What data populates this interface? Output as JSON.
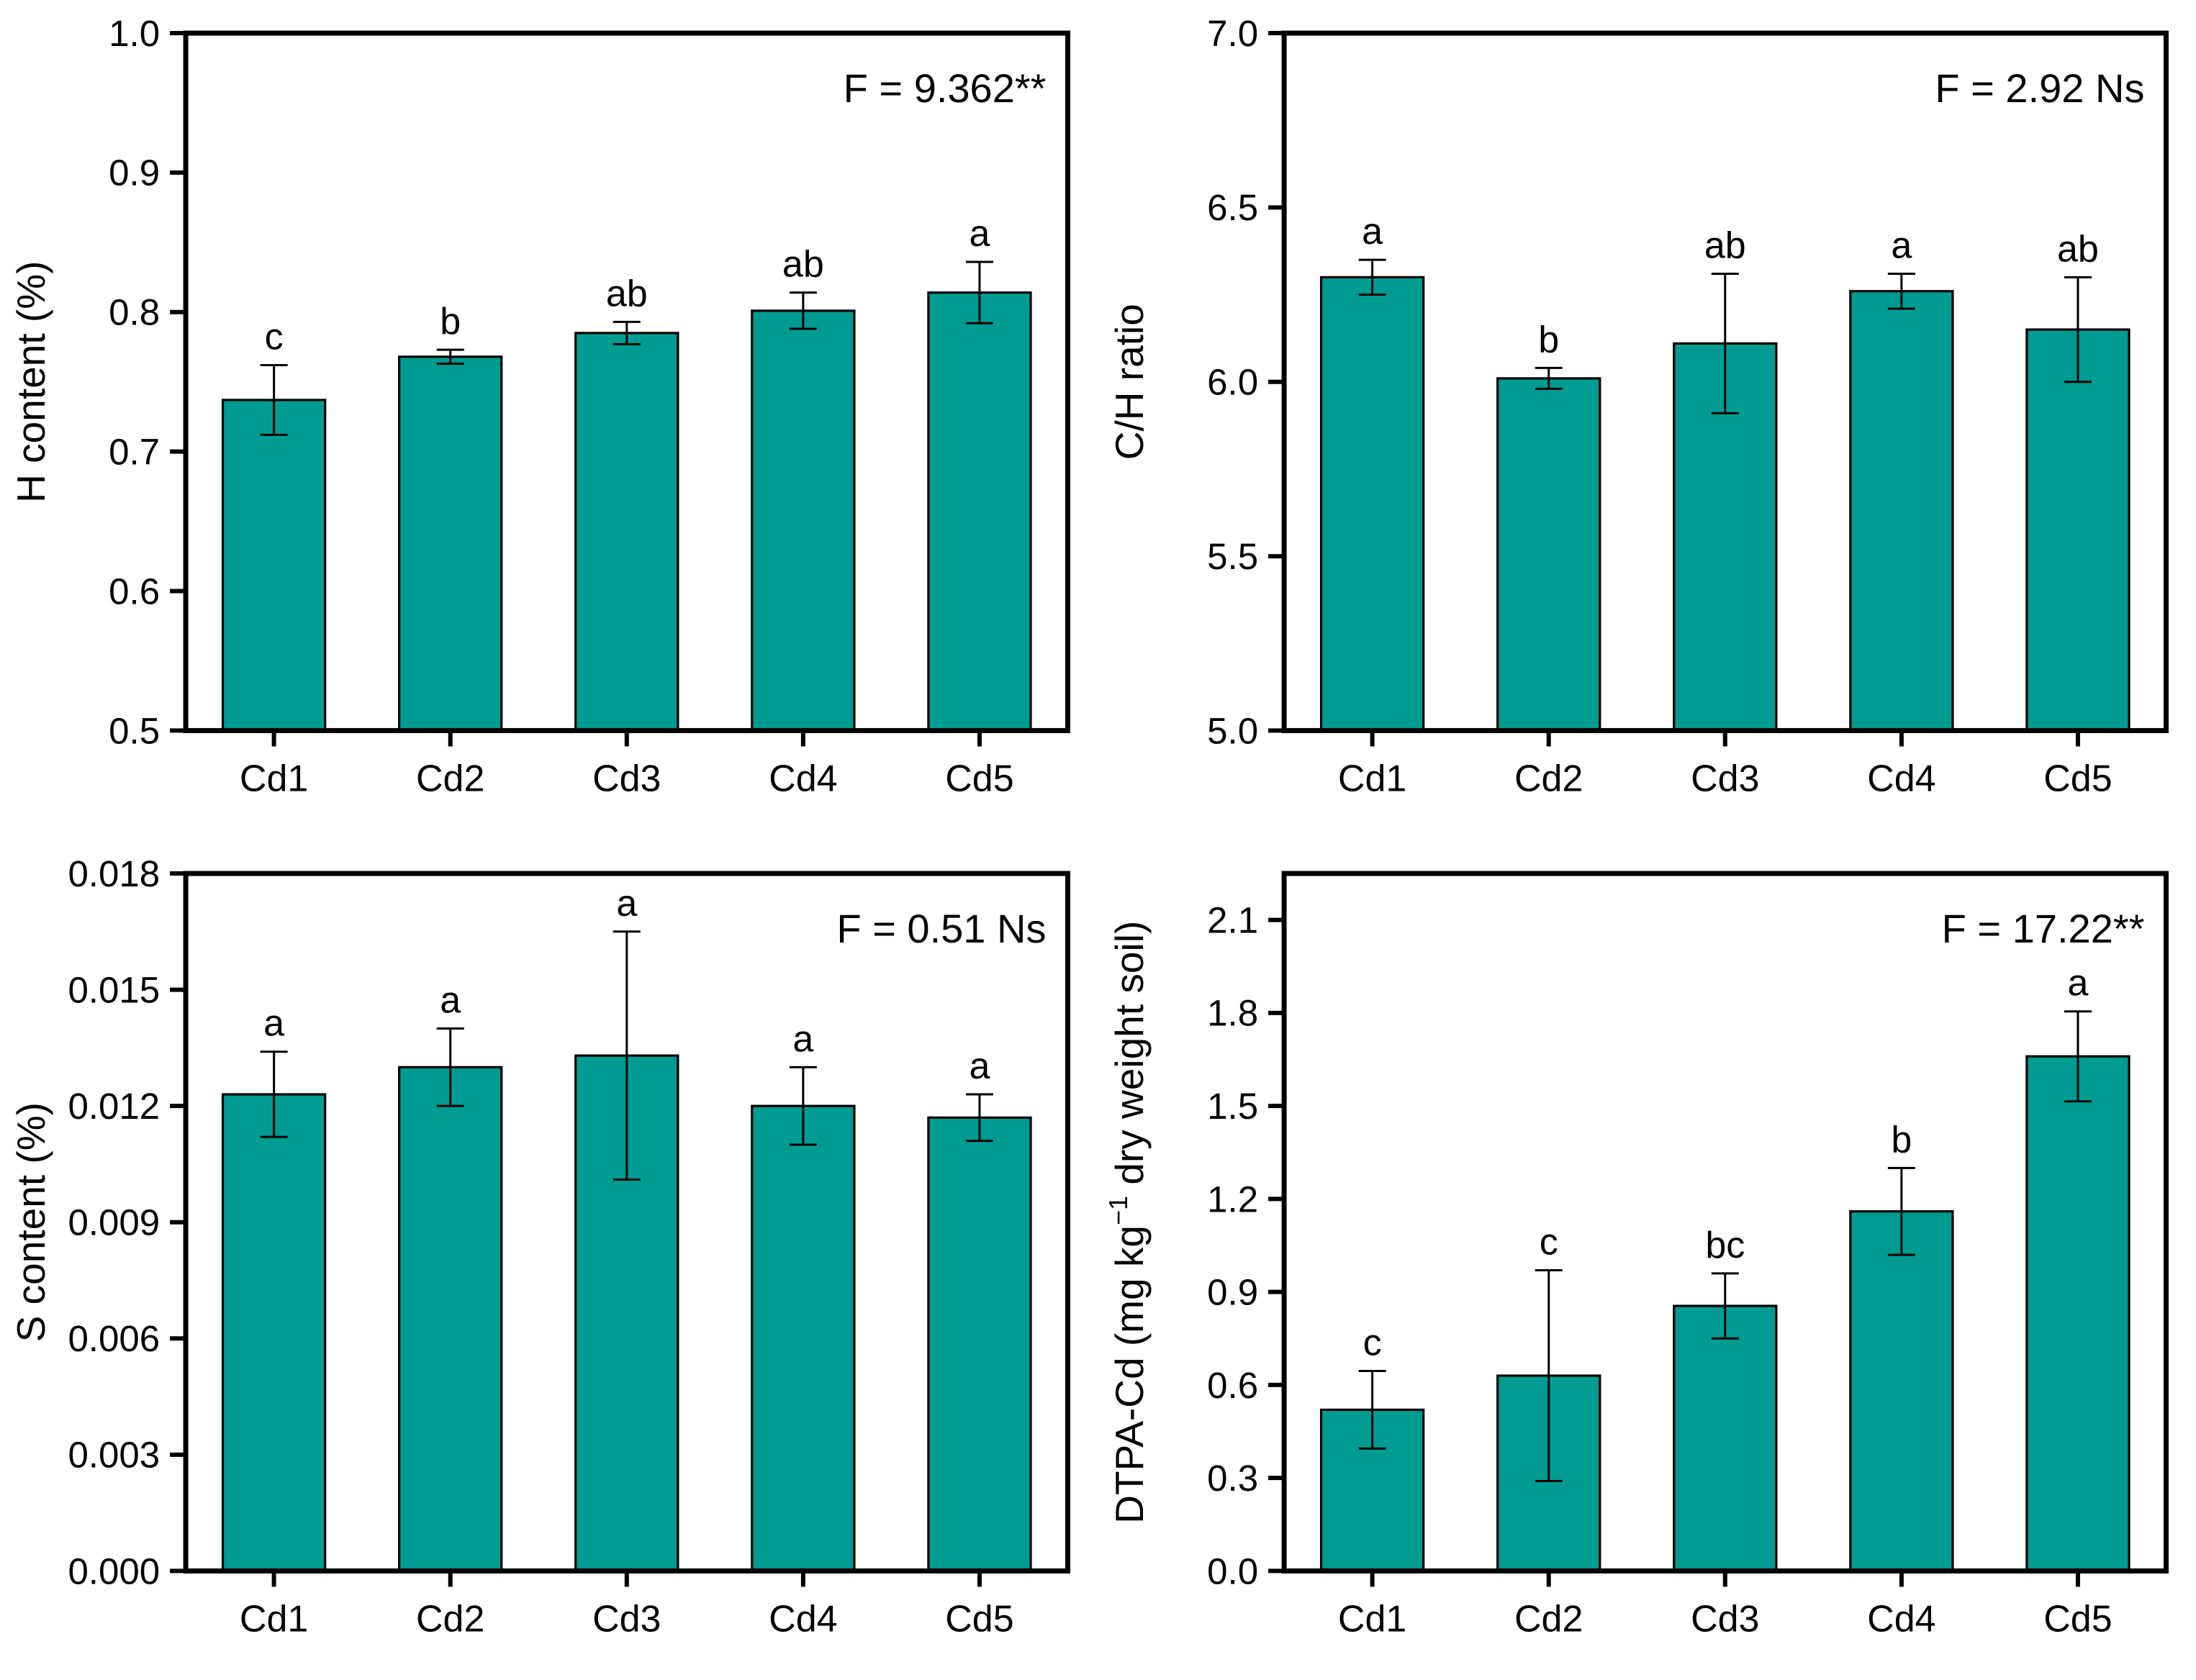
{
  "figure": {
    "background": "#ffffff",
    "bar_fill": "#009c92",
    "bar_stroke": "#000000",
    "axis_color": "#000000"
  },
  "chart_data": [
    {
      "id": "h-content",
      "type": "bar",
      "annotation": "F = 9.362**",
      "ylabel_parts": [
        {
          "text": "H content (%)"
        }
      ],
      "categories": [
        "Cd1",
        "Cd2",
        "Cd3",
        "Cd4",
        "Cd5"
      ],
      "values": [
        0.737,
        0.768,
        0.785,
        0.801,
        0.814
      ],
      "errors": [
        0.025,
        0.005,
        0.008,
        0.013,
        0.022
      ],
      "letters": [
        "c",
        "b",
        "ab",
        "ab",
        "a"
      ],
      "ylim": [
        0.5,
        1.0
      ],
      "ytick_step": 0.1,
      "ytick_decimals": 1,
      "grid": false,
      "legend": "none"
    },
    {
      "id": "ch-ratio",
      "type": "bar",
      "annotation": "F = 2.92 Ns",
      "ylabel_parts": [
        {
          "text": "C/H ratio"
        }
      ],
      "categories": [
        "Cd1",
        "Cd2",
        "Cd3",
        "Cd4",
        "Cd5"
      ],
      "values": [
        6.3,
        6.01,
        6.11,
        6.26,
        6.15
      ],
      "errors": [
        0.05,
        0.03,
        0.2,
        0.05,
        0.15
      ],
      "letters": [
        "a",
        "b",
        "ab",
        "a",
        "ab"
      ],
      "ylim": [
        5.0,
        7.0
      ],
      "ytick_step": 0.5,
      "ytick_decimals": 1,
      "grid": false,
      "legend": "none"
    },
    {
      "id": "s-content",
      "type": "bar",
      "annotation": "F = 0.51 Ns",
      "ylabel_parts": [
        {
          "text": "S content (%)"
        }
      ],
      "categories": [
        "Cd1",
        "Cd2",
        "Cd3",
        "Cd4",
        "Cd5"
      ],
      "values": [
        0.0123,
        0.013,
        0.0133,
        0.012,
        0.0117
      ],
      "errors": [
        0.0011,
        0.001,
        0.0032,
        0.001,
        0.0006
      ],
      "letters": [
        "a",
        "a",
        "a",
        "a",
        "a"
      ],
      "ylim": [
        0.0,
        0.018
      ],
      "ytick_step": 0.003,
      "ytick_decimals": 3,
      "grid": false,
      "legend": "none"
    },
    {
      "id": "dtpa-cd",
      "type": "bar",
      "annotation": "F = 17.22**",
      "ylabel_parts": [
        {
          "text": "DTPA-Cd (mg kg"
        },
        {
          "text": "−1",
          "sup": true
        },
        {
          "text": " dry weight soil)"
        }
      ],
      "categories": [
        "Cd1",
        "Cd2",
        "Cd3",
        "Cd4",
        "Cd5"
      ],
      "values": [
        0.52,
        0.63,
        0.855,
        1.16,
        1.66
      ],
      "errors": [
        0.125,
        0.34,
        0.105,
        0.14,
        0.145
      ],
      "letters": [
        "c",
        "c",
        "bc",
        "b",
        "a"
      ],
      "ylim": [
        0.0,
        2.25
      ],
      "yticks": [
        0.0,
        0.3,
        0.6,
        0.9,
        1.2,
        1.5,
        1.8,
        2.1
      ],
      "ytick_decimals": 1,
      "grid": false,
      "legend": "none"
    }
  ]
}
